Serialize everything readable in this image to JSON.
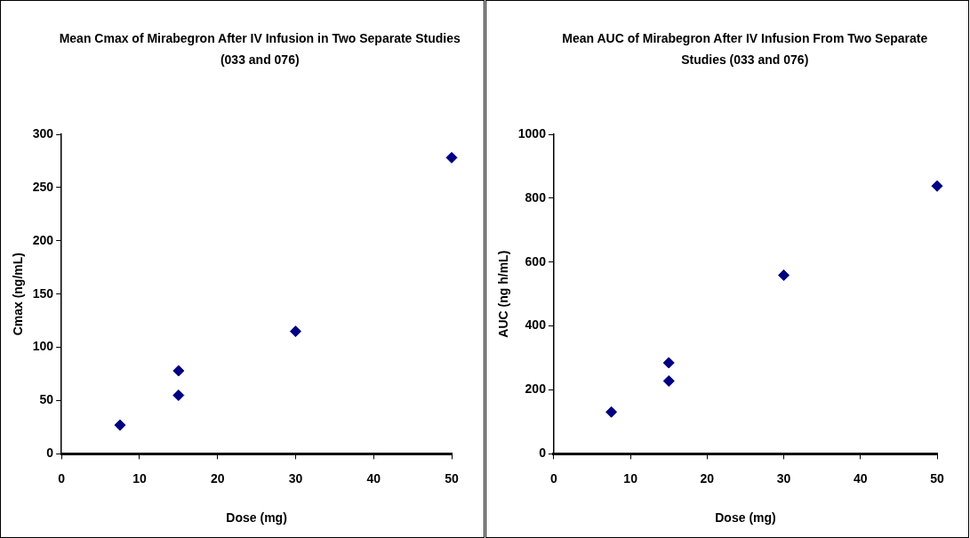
{
  "chart_data": [
    {
      "type": "scatter",
      "title": "Mean Cmax of Mirabegron After IV Infusion in Two Separate Studies (033 and 076)",
      "xlabel": "Dose (mg)",
      "ylabel": "Cmax (ng/mL)",
      "x": [
        7.5,
        15,
        15,
        30,
        50
      ],
      "series": [
        {
          "color": "#000080",
          "values": [
            27,
            78,
            55,
            115,
            278
          ]
        }
      ],
      "xlim": [
        0,
        50
      ],
      "xticks": [
        0,
        10,
        20,
        30,
        40,
        50
      ],
      "ylim": [
        0,
        300
      ],
      "yticks": [
        0,
        50,
        100,
        150,
        200,
        250,
        300
      ],
      "grid": false,
      "legend": false,
      "marker": "diamond"
    },
    {
      "type": "scatter",
      "title": "Mean AUC of Mirabegron After IV Infusion From Two Separate Studies (033 and 076)",
      "xlabel": "Dose (mg)",
      "ylabel": "AUC (ng h/mL)",
      "x": [
        7.5,
        15,
        15,
        30,
        50
      ],
      "series": [
        {
          "color": "#000080",
          "values": [
            131,
            285,
            228,
            559,
            838
          ]
        }
      ],
      "xlim": [
        0,
        50
      ],
      "xticks": [
        0,
        10,
        20,
        30,
        40,
        50
      ],
      "ylim": [
        0,
        1000
      ],
      "yticks": [
        0,
        200,
        400,
        600,
        800,
        1000
      ],
      "grid": false,
      "legend": false,
      "marker": "diamond"
    }
  ]
}
